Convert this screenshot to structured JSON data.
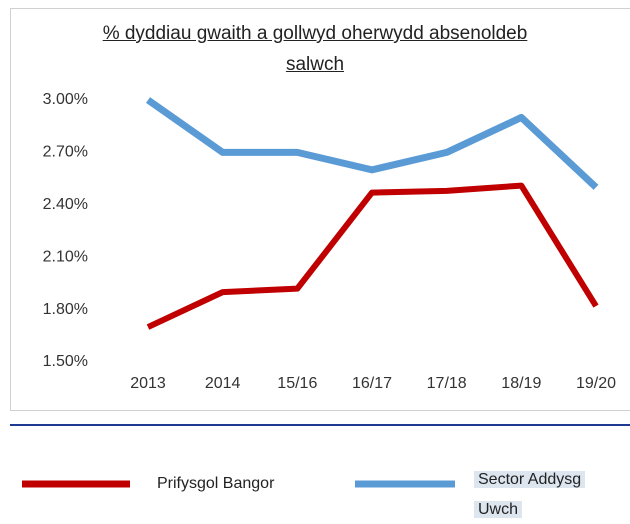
{
  "chart_data": {
    "type": "line",
    "title": "% dyddiau gwaith a gollwyd oherwydd absenoldeb salwch",
    "categories": [
      "2013",
      "2014",
      "15/16",
      "16/17",
      "17/18",
      "18/19",
      "19/20"
    ],
    "series": [
      {
        "name": "Prifysgol Bangor",
        "color": "#c00000",
        "values": [
          1.7,
          1.9,
          1.92,
          2.47,
          2.48,
          2.51,
          1.82
        ]
      },
      {
        "name": "Sector Addysg Uwch",
        "color": "#5b9bd5",
        "values": [
          3.0,
          2.7,
          2.7,
          2.6,
          2.7,
          2.9,
          2.5
        ]
      }
    ],
    "ylim": [
      1.5,
      3.0
    ],
    "yticks": [
      {
        "value": 1.5,
        "label": "1.50%"
      },
      {
        "value": 1.8,
        "label": "1.80%"
      },
      {
        "value": 2.1,
        "label": "2.10%"
      },
      {
        "value": 2.4,
        "label": "2.40%"
      },
      {
        "value": 2.7,
        "label": "2.70%"
      },
      {
        "value": 3.0,
        "label": "3.00%"
      }
    ],
    "grid": false,
    "legend": "bottom"
  }
}
